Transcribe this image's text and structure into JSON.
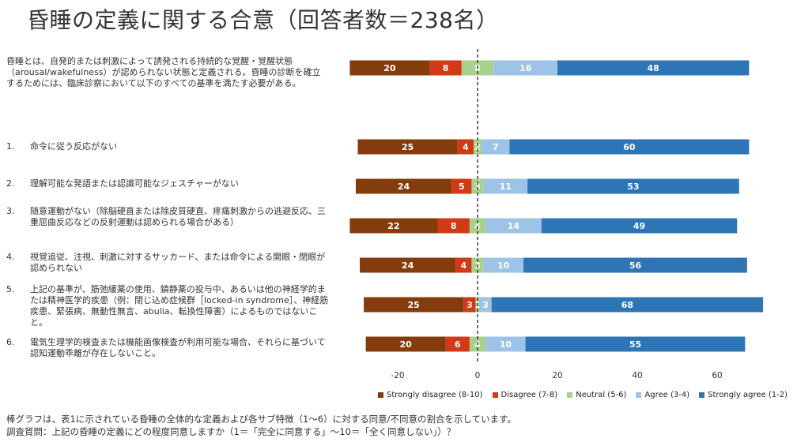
{
  "title": "昏睡の定義に関する合意（回答者数＝238名）",
  "intro": "昏睡とは、自発的または刺激によって誘発される持続的な覚醒・覚醒状態（arousal/wakefulness）が認められない状態と定義される。昏睡の診断を確立するためには、臨床診察において以下のすべての基準を満たす必要がある。",
  "criteria": [
    {
      "num": "1.",
      "text": "命令に従う反応がない"
    },
    {
      "num": "2.",
      "text": "理解可能な発語または認識可能なジェスチャーがない"
    },
    {
      "num": "3.",
      "text": "随意運動がない（除脳硬直または除皮質硬直、疼痛刺激からの逃避反応、三重屈曲反応などの反射運動は認められる場合がある）"
    },
    {
      "num": "4.",
      "text": "視覚追従、注視、刺激に対するサッカード、または命令による開眼・閉眼が認められない"
    },
    {
      "num": "5.",
      "text": "上記の基準が、筋弛緩薬の使用、鎮静薬の投与中、あるいは他の神経学的または精神医学的疾患（例：閉じ込め症候群［locked-in syndrome］、神経筋疾患、緊張病、無動性無言、abulia、転換性障害）によるものではないこと。"
    },
    {
      "num": "6.",
      "text": "電気生理学的検査または機能画像検査が利用可能な場合、それらに基づいて認知運動乖離が存在しないこと。"
    }
  ],
  "chart_data": {
    "type": "bar",
    "orientation": "horizontal",
    "diverging": true,
    "categories": [
      "intro",
      "1.",
      "2.",
      "3.",
      "4.",
      "5.",
      "6."
    ],
    "series": [
      {
        "name": "Strongly disagree (8-10)",
        "color": "#843c0c",
        "values": [
          20,
          25,
          24,
          22,
          24,
          25,
          20
        ]
      },
      {
        "name": "Disagree (7-8)",
        "color": "#d03a16",
        "values": [
          8,
          4,
          5,
          8,
          4,
          3,
          6
        ]
      },
      {
        "name": "Neutral (5-6)",
        "color": "#a9d18e",
        "values": [
          8,
          2,
          3,
          4,
          3,
          1,
          4
        ]
      },
      {
        "name": "Agree (3-4)",
        "color": "#9dc3e6",
        "values": [
          16,
          7,
          11,
          14,
          10,
          3,
          10
        ]
      },
      {
        "name": "Strongly agree (1-2)",
        "color": "#2e75b6",
        "values": [
          48,
          60,
          53,
          49,
          56,
          68,
          55
        ]
      }
    ],
    "xticks": [
      "-20",
      "0",
      "20",
      "40",
      "60"
    ],
    "xlim": [
      -34,
      72
    ],
    "grid": false,
    "legend_position": "bottom"
  },
  "footer": [
    "棒グラフは、表1に示されている昏睡の全体的な定義および各サブ特徴（1〜6）に対する同意/不同意の割合を示しています。",
    "調査質問：上記の昏睡の定義にどの程度同意しますか（1＝「完全に同意する」〜10＝「全く同意しない」）？"
  ]
}
